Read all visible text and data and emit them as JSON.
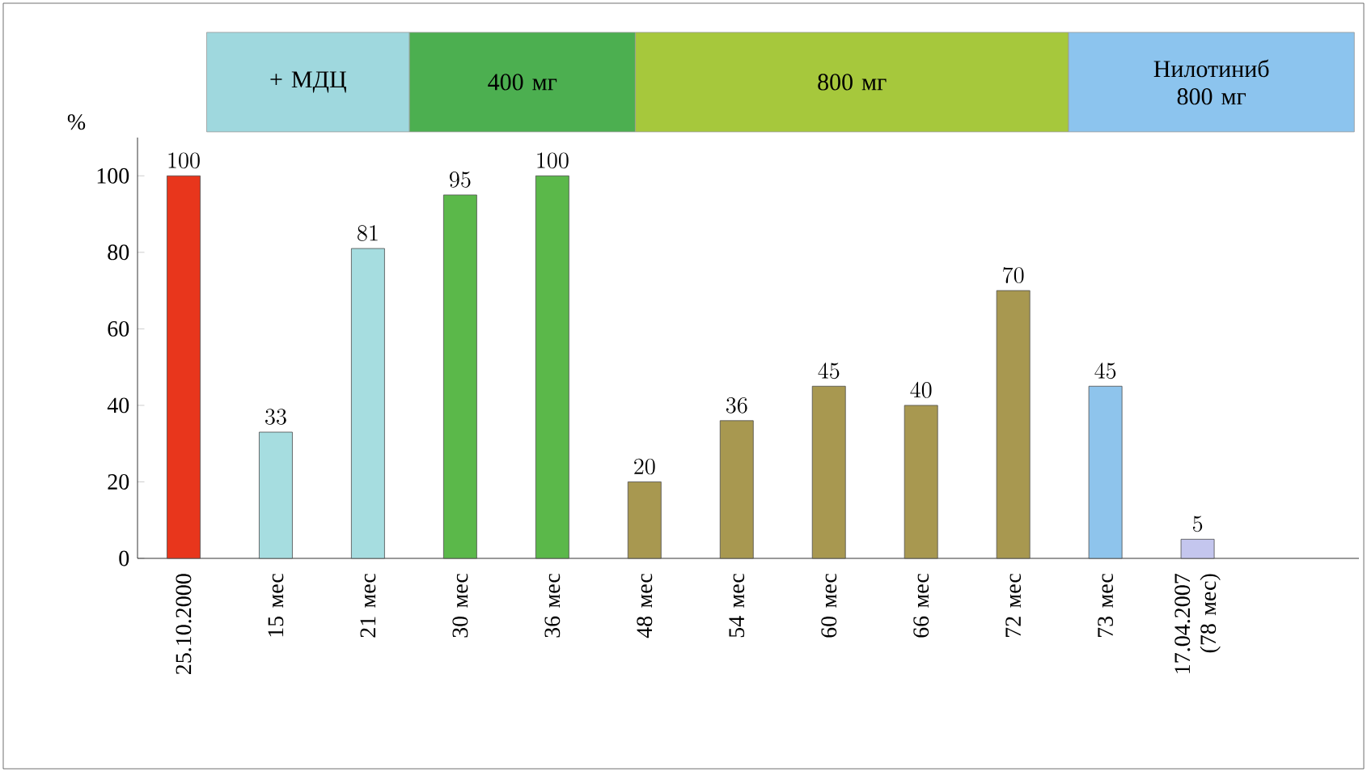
{
  "chart_data": {
    "type": "bar",
    "ylabel": "%",
    "categories": [
      "25.10.2000",
      "15 мес",
      "21 мес",
      "30 мес",
      "36 мес",
      "48 мес",
      "54 мес",
      "60 мес",
      "66 мес",
      "72 мес",
      "73 мес",
      "17.04.2007 (78 мес)"
    ],
    "values": [
      100,
      33,
      81,
      95,
      100,
      20,
      36,
      45,
      40,
      70,
      45,
      5
    ],
    "colors": [
      "#e8361c",
      "#a6dde0",
      "#a6dde0",
      "#5bb84a",
      "#5bb84a",
      "#a89850",
      "#a89850",
      "#a89850",
      "#a89850",
      "#a89850",
      "#8ec4ec",
      "#c4c6ee"
    ],
    "data_labels": true,
    "ylim": [
      0,
      110
    ],
    "yticks": [
      0,
      20,
      40,
      60,
      80,
      100
    ],
    "annotations": [
      "+ МДЦ",
      "400 мг",
      "800 мг",
      "Нилотиниб 800 мг"
    ]
  }
}
